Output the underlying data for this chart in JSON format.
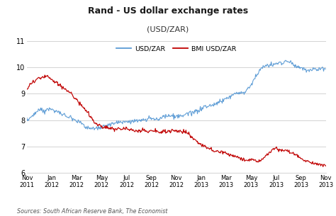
{
  "title": "Rand - US dollar exchange rates",
  "subtitle": "(USD/ZAR)",
  "source_text": "Sources: South African Reserve Bank, The Economist",
  "usd_zar_color": "#5B9BD5",
  "bmi_color": "#C00000",
  "ylim": [
    6,
    11
  ],
  "yticks": [
    6,
    7,
    8,
    9,
    10,
    11
  ],
  "x_labels": [
    "Nov\n2011",
    "Jan\n2012",
    "Mar\n2012",
    "May\n2012",
    "Jul\n2012",
    "Sep\n2012",
    "Nov\n2012",
    "Jan\n2013",
    "Mar\n2013",
    "May\n2013",
    "Jul\n2013",
    "Sep\n2013",
    "Nov\n2013"
  ],
  "legend_labels": [
    "USD/ZAR",
    "BMI USD/ZAR"
  ],
  "background_color": "#ffffff",
  "grid_color": "#cccccc",
  "usd_zar_trend_x": [
    0,
    0.04,
    0.08,
    0.12,
    0.17,
    0.22,
    0.27,
    0.33,
    0.4,
    0.47,
    0.53,
    0.58,
    0.63,
    0.68,
    0.73,
    0.78,
    0.83,
    0.88,
    0.93,
    1.0
  ],
  "usd_zar_trend_y": [
    8.0,
    8.35,
    8.55,
    8.25,
    8.05,
    7.75,
    7.9,
    8.1,
    8.3,
    8.45,
    8.55,
    8.75,
    8.85,
    9.0,
    9.2,
    10.05,
    10.25,
    10.3,
    10.0,
    9.95
  ],
  "bmi_trend_x": [
    0,
    0.04,
    0.07,
    0.12,
    0.18,
    0.23,
    0.3,
    0.38,
    0.46,
    0.53,
    0.58,
    0.63,
    0.68,
    0.73,
    0.78,
    0.83,
    0.88,
    0.93,
    1.0
  ],
  "bmi_trend_y": [
    9.2,
    9.55,
    9.55,
    9.1,
    8.5,
    7.75,
    7.6,
    7.6,
    7.65,
    7.6,
    7.1,
    6.9,
    6.75,
    6.6,
    6.55,
    7.0,
    6.85,
    6.55,
    6.3
  ],
  "noise_seed": 12,
  "n_points": 520
}
